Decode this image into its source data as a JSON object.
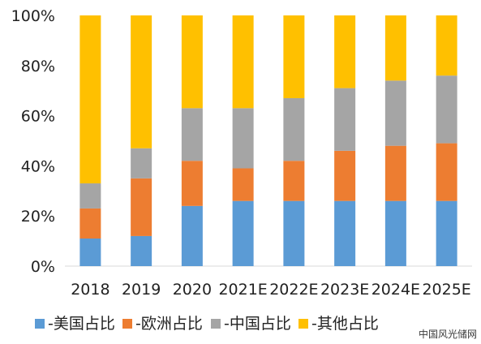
{
  "chart_data": {
    "type": "bar",
    "stacked": true,
    "categories": [
      "2018",
      "2019",
      "2020",
      "2021E",
      "2022E",
      "2023E",
      "2024E",
      "2025E"
    ],
    "series": [
      {
        "name": "-美国占比",
        "color": "#5B9BD5",
        "values": [
          11,
          12,
          24,
          26,
          26,
          26,
          26,
          26
        ]
      },
      {
        "name": "-欧洲占比",
        "color": "#ED7D31",
        "values": [
          12,
          23,
          18,
          13,
          16,
          20,
          22,
          23
        ]
      },
      {
        "name": "-中国占比",
        "color": "#A5A5A5",
        "values": [
          10,
          12,
          21,
          24,
          25,
          25,
          26,
          27
        ]
      },
      {
        "name": "-其他占比",
        "color": "#FFC000",
        "values": [
          67,
          53,
          37,
          37,
          33,
          29,
          26,
          24
        ]
      }
    ],
    "y_ticks": [
      "0%",
      "20%",
      "40%",
      "60%",
      "80%",
      "100%"
    ],
    "ylim": [
      0,
      100
    ],
    "grid": false,
    "legend_position": "bottom"
  },
  "watermark": "中国风光储网"
}
